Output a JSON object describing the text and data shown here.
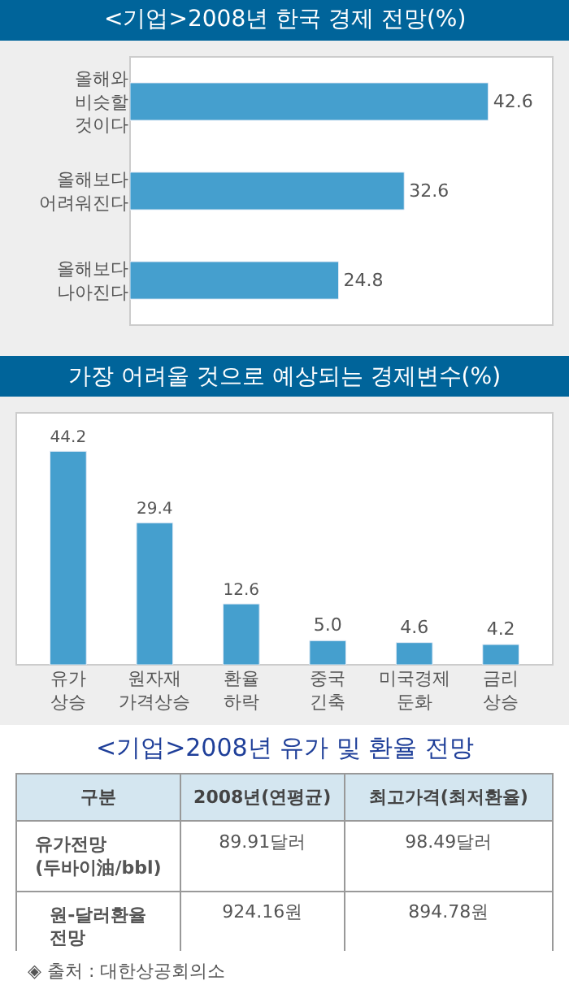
{
  "chart_data": [
    {
      "type": "bar",
      "title": "<기업>2008년 한국 경제 전망(%)",
      "orientation": "horizontal",
      "categories": [
        "올해와\n비슷할\n것이다",
        "올해보다\n어려워진다",
        "올해보다\n나아진다"
      ],
      "values": [
        42.6,
        32.6,
        24.8
      ],
      "color": "#459fce",
      "data_labels": true
    },
    {
      "type": "bar",
      "title": "가장 어려울 것으로 예상되는 경제변수(%)",
      "categories": [
        "유가\n상승",
        "원자재\n가격상승",
        "환율\n하락",
        "중국\n긴축",
        "미국경제\n둔화",
        "금리\n상승"
      ],
      "values": [
        44.2,
        29.4,
        12.6,
        5.0,
        4.6,
        4.2
      ],
      "value_labels": [
        "44.2",
        "29.4",
        "12.6",
        "5.0",
        "4.6",
        "4.2"
      ],
      "color": "#459fce"
    },
    {
      "type": "other",
      "title": "<기업>2008년 유가 및 환율 전망",
      "annotations": [
        "구분",
        "2008년(연평균)",
        "최고가격(최저환율)",
        "유가전망\n(두바이油/bbl)",
        "89.91달러",
        "98.49달러",
        "원-달러환율\n전망",
        "924.16원",
        "894.78원",
        "◈ 출처 : 대한상공회의소"
      ]
    }
  ]
}
